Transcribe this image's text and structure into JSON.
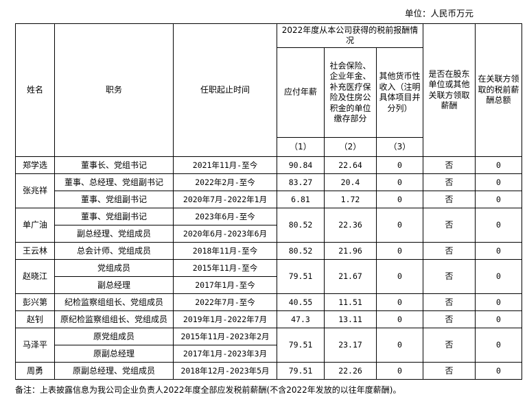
{
  "unit_label": "单位：人民币万元",
  "header": {
    "name": "姓名",
    "position": "职务",
    "term": "任职起止时间",
    "group": "2022年度从本公司获得的税前报酬情况",
    "pay": "应付年薪",
    "social": "社会保险、企业年金、补充医疗保险及住房公积金的单位缴存部分",
    "other": "其他货币性收入（注明具体项目并分列）",
    "related": "是否在股东单位或其他关联方领取薪酬",
    "related_total": "在关联方领取的税前薪酬总额",
    "idx1": "（1）",
    "idx2": "（2）",
    "idx3": "（3）"
  },
  "persons": [
    {
      "name": "郑学选",
      "pay": "90.84",
      "social": "22.64",
      "other": "0",
      "related": "否",
      "related_total": "0",
      "roles": [
        {
          "position": "董事长、党组书记",
          "term": "2021年11月-至今"
        }
      ]
    },
    {
      "name": "张兆祥",
      "roles": [
        {
          "position": "董事、总经理、党组副书记",
          "term": "2022年2月-至今",
          "pay": "83.27",
          "social": "20.4",
          "other": "0",
          "related": "否",
          "related_total": "0"
        },
        {
          "position": "董事、党组副书记",
          "term": "2020年7月-2022年1月",
          "pay": "6.81",
          "social": "1.72",
          "other": "0",
          "related": "否",
          "related_total": "0"
        }
      ]
    },
    {
      "name": "单广油",
      "pay": "80.52",
      "social": "22.36",
      "other": "0",
      "related": "否",
      "related_total": "0",
      "roles": [
        {
          "position": "董事、党组副书记",
          "term": "2023年6月-至今"
        },
        {
          "position": "副总经理、党组成员",
          "term": "2020年6月-2023年6月"
        }
      ]
    },
    {
      "name": "王云林",
      "pay": "80.52",
      "social": "21.96",
      "other": "0",
      "related": "否",
      "related_total": "0",
      "roles": [
        {
          "position": "总会计师、党组成员",
          "term": "2018年11月-至今"
        }
      ]
    },
    {
      "name": "赵晓江",
      "pay": "79.51",
      "social": "21.67",
      "other": "0",
      "related": "否",
      "related_total": "0",
      "roles": [
        {
          "position": "党组成员",
          "term": "2015年11月-至今"
        },
        {
          "position": "副总经理",
          "term": "2017年1月-至今"
        }
      ]
    },
    {
      "name": "彭兴第",
      "pay": "40.55",
      "social": "11.51",
      "other": "0",
      "related": "否",
      "related_total": "0",
      "roles": [
        {
          "position": "纪检监察组组长、党组成员",
          "term": "2022年7月-至今"
        }
      ]
    },
    {
      "name": "赵钊",
      "pay": "47.3",
      "social": "13.11",
      "other": "0",
      "related": "否",
      "related_total": "0",
      "roles": [
        {
          "position": "原纪检监察组组长、党组成员",
          "term": "2019年1月-2022年7月"
        }
      ]
    },
    {
      "name": "马泽平",
      "pay": "79.51",
      "social": "23.17",
      "other": "0",
      "related": "否",
      "related_total": "0",
      "roles": [
        {
          "position": "原党组成员",
          "term": "2015年11月-2023年2月"
        },
        {
          "position": "原副总经理",
          "term": "2017年1月-2023年3月"
        }
      ]
    },
    {
      "name": "周勇",
      "pay": "79.51",
      "social": "22.26",
      "other": "0",
      "related": "否",
      "related_total": "0",
      "roles": [
        {
          "position": "原副总经理、党组成员",
          "term": "2018年12月-2023年5月"
        }
      ]
    }
  ],
  "note": "备注：上表披露信息为我公司企业负责人2022年度全部应发税前薪酬(不含2022年发放的以往年度薪酬)。"
}
